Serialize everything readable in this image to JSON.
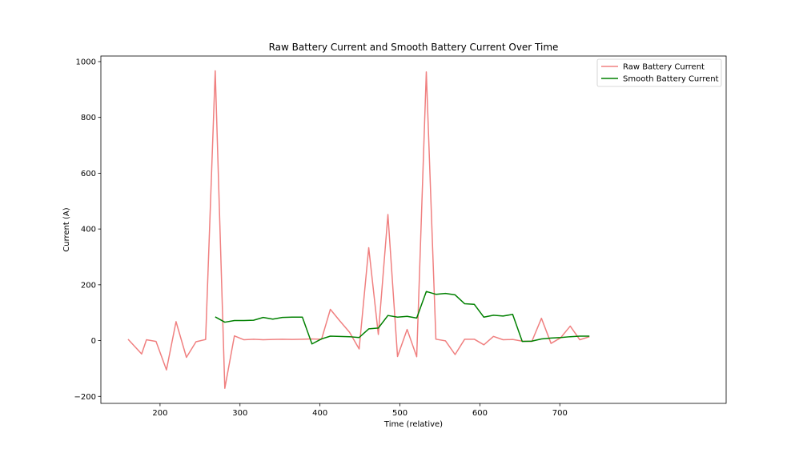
{
  "chart_data": {
    "type": "line",
    "title": "Raw Battery Current and Smooth Battery Current Over Time",
    "xlabel": "Time (relative)",
    "ylabel": "Current (A)",
    "xlim": [
      126,
      908
    ],
    "ylim": [
      -225,
      1020
    ],
    "xticks": [
      200,
      300,
      400,
      500,
      600,
      700
    ],
    "yticks": [
      -200,
      0,
      200,
      400,
      600,
      800,
      1000
    ],
    "xtick_labels": [
      "200",
      "300",
      "400",
      "500",
      "600",
      "700"
    ],
    "ytick_labels": [
      "−200",
      "0",
      "200",
      "400",
      "600",
      "800",
      "1000"
    ],
    "grid": false,
    "legend_position": "top-right",
    "series": [
      {
        "name": "Raw Battery Current",
        "color": "#f08080",
        "points": [
          [
            160,
            5
          ],
          [
            177,
            -48
          ],
          [
            183,
            3
          ],
          [
            195,
            -3
          ],
          [
            208,
            -105
          ],
          [
            220,
            68
          ],
          [
            233,
            -60
          ],
          [
            245,
            -4
          ],
          [
            257,
            4
          ],
          [
            269,
            967
          ],
          [
            281,
            -171
          ],
          [
            293,
            17
          ],
          [
            305,
            3
          ],
          [
            317,
            5
          ],
          [
            329,
            3
          ],
          [
            341,
            4
          ],
          [
            353,
            5
          ],
          [
            365,
            4
          ],
          [
            378,
            5
          ],
          [
            390,
            6
          ],
          [
            402,
            5
          ],
          [
            413,
            112
          ],
          [
            425,
            70
          ],
          [
            437,
            30
          ],
          [
            449,
            -30
          ],
          [
            461,
            333
          ],
          [
            473,
            22
          ],
          [
            485,
            452
          ],
          [
            497,
            -57
          ],
          [
            509,
            40
          ],
          [
            521,
            -58
          ],
          [
            533,
            963
          ],
          [
            545,
            5
          ],
          [
            557,
            -1
          ],
          [
            569,
            -50
          ],
          [
            581,
            5
          ],
          [
            593,
            5
          ],
          [
            605,
            -15
          ],
          [
            617,
            15
          ],
          [
            629,
            3
          ],
          [
            641,
            4
          ],
          [
            653,
            -2
          ],
          [
            665,
            -3
          ],
          [
            677,
            80
          ],
          [
            689,
            -10
          ],
          [
            701,
            10
          ],
          [
            713,
            52
          ],
          [
            725,
            3
          ],
          [
            737,
            14
          ]
        ]
      },
      {
        "name": "Smooth Battery Current",
        "color": "#008000",
        "points": [
          [
            269,
            85
          ],
          [
            281,
            66
          ],
          [
            293,
            72
          ],
          [
            305,
            72
          ],
          [
            317,
            73
          ],
          [
            329,
            83
          ],
          [
            341,
            77
          ],
          [
            353,
            83
          ],
          [
            365,
            84
          ],
          [
            378,
            84
          ],
          [
            390,
            -12
          ],
          [
            402,
            6
          ],
          [
            413,
            16
          ],
          [
            425,
            15
          ],
          [
            437,
            14
          ],
          [
            449,
            11
          ],
          [
            461,
            42
          ],
          [
            473,
            45
          ],
          [
            485,
            90
          ],
          [
            497,
            84
          ],
          [
            509,
            87
          ],
          [
            521,
            81
          ],
          [
            533,
            176
          ],
          [
            545,
            166
          ],
          [
            557,
            169
          ],
          [
            569,
            164
          ],
          [
            581,
            132
          ],
          [
            593,
            130
          ],
          [
            605,
            84
          ],
          [
            617,
            91
          ],
          [
            629,
            88
          ],
          [
            641,
            94
          ],
          [
            653,
            -3
          ],
          [
            665,
            -2
          ],
          [
            677,
            6
          ],
          [
            689,
            9
          ],
          [
            701,
            11
          ],
          [
            713,
            14
          ],
          [
            725,
            16
          ],
          [
            737,
            16
          ]
        ]
      }
    ]
  }
}
